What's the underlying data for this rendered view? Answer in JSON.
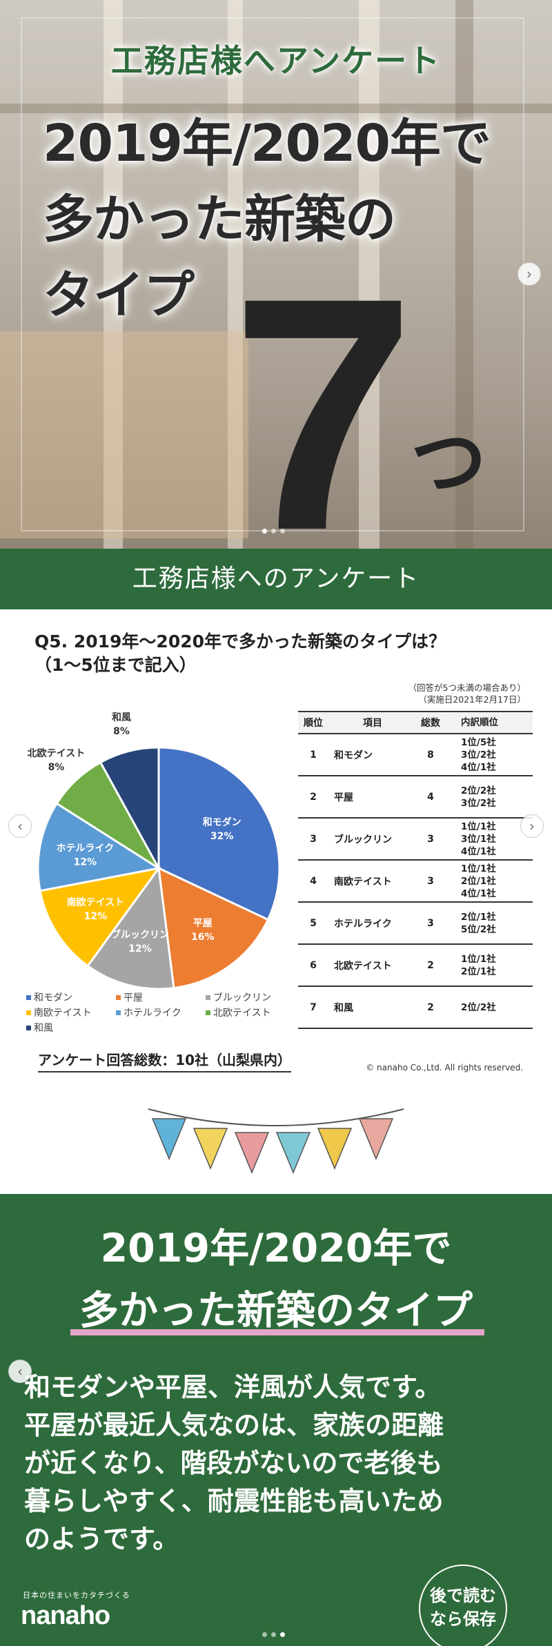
{
  "slide1": {
    "survey_label": "工務店様へアンケート",
    "title_line1": "2019年/2020年で",
    "title_line2": "多かった新築の",
    "title_line3": "タイプ",
    "big_number": "7",
    "counter_suffix": "つ",
    "next_icon": "chevron-right-icon",
    "carousel": {
      "total": 3,
      "active": 1
    }
  },
  "slide2": {
    "banner": "工務店様へのアンケート",
    "question_line1": "Q5. 2019年～2020年で多かった新築のタイプは？",
    "question_line2": "（1～5位まで記入）",
    "note_line1": "（回答が5つ未満の場合あり）",
    "note_line2": "（実施日2021年2月17日）",
    "prev_icon": "chevron-left-icon",
    "next_icon": "chevron-right-icon",
    "table": {
      "headers": {
        "rank": "順位",
        "item": "項目",
        "total": "総数",
        "detail": "内訳順位"
      },
      "rows": [
        {
          "rank": "1",
          "item": "和モダン",
          "total": "8",
          "detail": "1位/5社\n3位/2社\n4位/1社"
        },
        {
          "rank": "2",
          "item": "平屋",
          "total": "4",
          "detail": "2位/2社\n3位/2社"
        },
        {
          "rank": "3",
          "item": "ブルックリン",
          "total": "3",
          "detail": "1位/1社\n3位/1社\n4位/1社"
        },
        {
          "rank": "4",
          "item": "南欧テイスト",
          "total": "3",
          "detail": "1位/1社\n2位/1社\n4位/1社"
        },
        {
          "rank": "5",
          "item": "ホテルライク",
          "total": "3",
          "detail": "2位/1社\n5位/2社"
        },
        {
          "rank": "6",
          "item": "北欧テイスト",
          "total": "2",
          "detail": "1位/1社\n2位/1社"
        },
        {
          "rank": "7",
          "item": "和風",
          "total": "2",
          "detail": "2位/2社"
        }
      ]
    },
    "footer_total": "アンケート回答総数：10社（山梨県内）",
    "copyright": "© nanaho Co.,Ltd. All rights reserved."
  },
  "chart_data": {
    "type": "pie",
    "title": "",
    "categories": [
      "和モダン",
      "平屋",
      "ブルックリン",
      "南欧テイスト",
      "ホテルライク",
      "北欧テイスト",
      "和風"
    ],
    "values": [
      32,
      16,
      12,
      12,
      12,
      8,
      8
    ],
    "labels": [
      "32%",
      "16%",
      "12%",
      "12%",
      "12%",
      "8%",
      "8%"
    ],
    "colors": [
      "#4472c4",
      "#ed7d31",
      "#a5a5a5",
      "#ffc000",
      "#5b9bd5",
      "#70ad47",
      "#264478"
    ],
    "label_colors": [
      "#ffffff",
      "#ffffff",
      "#ffffff",
      "#ffffff",
      "#ffffff",
      "#333333",
      "#333333"
    ],
    "legend_position": "bottom"
  },
  "slide3": {
    "title_line1": "2019年/2020年で",
    "title_line2": "多かった新築のタイプ",
    "body_lines": [
      "和モダンや平屋、洋風が人気です。",
      "平屋が最近人気なのは、家族の距離",
      "が近くなり、階段がないので老後も",
      "暮らしやすく、耐震性能も高いため",
      "のようです。"
    ],
    "tagline": "日本の住まいをカタチづくる",
    "logo": "nanaho",
    "save_line1": "後で読む",
    "save_line2": "なら保存",
    "prev_icon": "chevron-left-icon",
    "bunting_colors": [
      "#5fb3d9",
      "#f2d45c",
      "#e99a9e",
      "#7ec8d6",
      "#f0c84a",
      "#e8a8a0"
    ],
    "carousel": {
      "total": 3,
      "active": 3
    }
  }
}
